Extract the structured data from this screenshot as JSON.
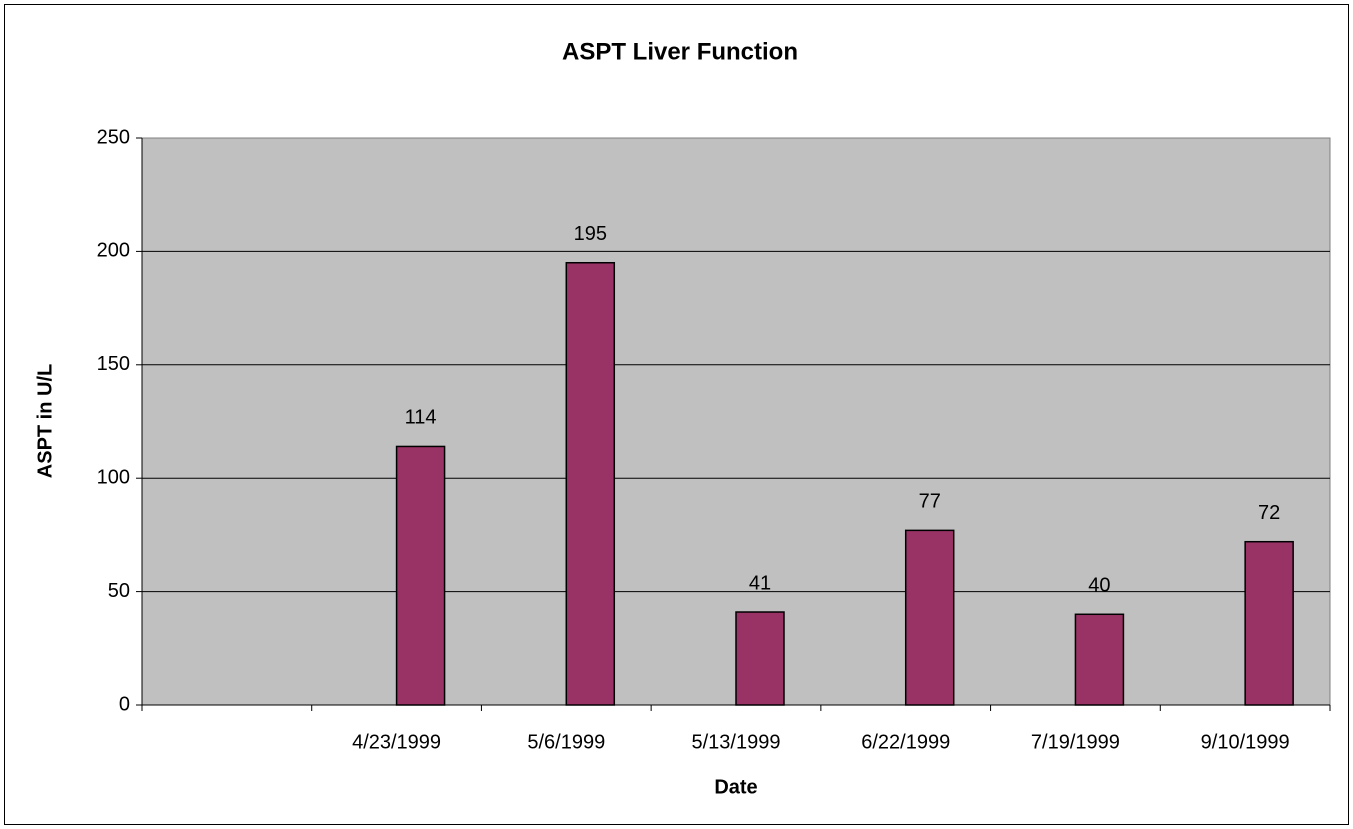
{
  "chart_data": {
    "type": "bar",
    "title": "ASPT Liver Function",
    "x_label": "Date",
    "y_label": "ASPT in U/L",
    "categories": [
      null,
      "4/23/1999",
      "5/6/1999",
      "5/13/1999",
      "6/22/1999",
      "7/19/1999",
      "9/10/1999"
    ],
    "values": [
      null,
      114,
      195,
      41,
      77,
      40,
      72
    ],
    "color": "#993366",
    "ylim": [
      0,
      250
    ],
    "yticks": [
      0,
      50,
      100,
      150,
      200,
      250
    ],
    "grid": true
  }
}
